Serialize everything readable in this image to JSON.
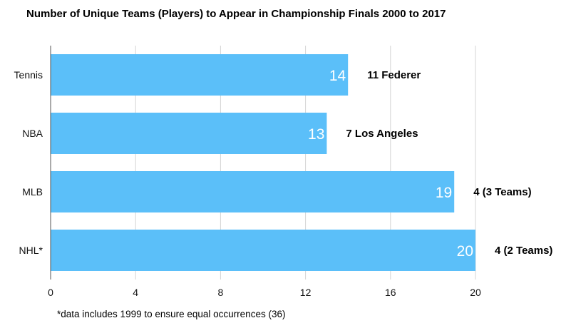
{
  "chart_data": {
    "type": "bar",
    "orientation": "horizontal",
    "title": "Number of Unique Teams (Players) to Appear in Championship Finals 2000 to 2017",
    "categories": [
      "Tennis",
      "NBA",
      "MLB",
      "NHL*"
    ],
    "values": [
      14,
      13,
      19,
      20
    ],
    "data_labels": [
      "14",
      "13",
      "19",
      "20"
    ],
    "annotations": [
      "11 Federer",
      "7 Los Angeles",
      "4 (3 Teams)",
      "4 (2 Teams)"
    ],
    "x_ticks": [
      "0",
      "4",
      "8",
      "12",
      "16",
      "20"
    ],
    "xlim": [
      0,
      20
    ],
    "xlabel": "",
    "ylabel": "",
    "grid": "vertical",
    "legend": "none",
    "footnote": "*data includes 1999 to ensure equal occurrences (36)",
    "colors": {
      "bar": "#5bbff9",
      "grid": "#d4d4d4",
      "axis": "#555555"
    }
  }
}
